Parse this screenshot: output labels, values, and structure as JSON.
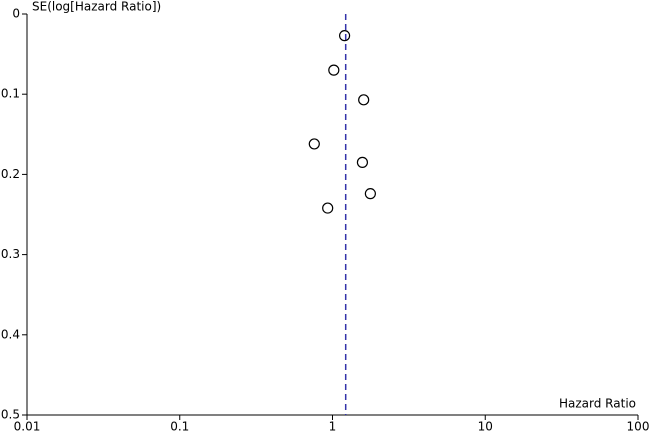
{
  "chart_data": {
    "type": "scatter",
    "y_label": "SE(log[Hazard Ratio])",
    "x_label": "Hazard Ratio",
    "x": [
      1.2,
      1.02,
      1.6,
      0.76,
      1.57,
      1.77,
      0.93
    ],
    "values": [
      0.027,
      0.07,
      0.107,
      0.162,
      0.185,
      0.224,
      0.242
    ],
    "color": "#000000",
    "xscale": "log",
    "xlim": [
      0.01,
      100
    ],
    "xticks": [
      0.01,
      0.1,
      1,
      10,
      100
    ],
    "ylim": [
      0,
      0.5
    ],
    "yticks": [
      0,
      0.1,
      0.2,
      0.3,
      0.4,
      0.5
    ],
    "y_reversed": true,
    "reference_line": 1.22,
    "reference_color": "#3333aa"
  }
}
